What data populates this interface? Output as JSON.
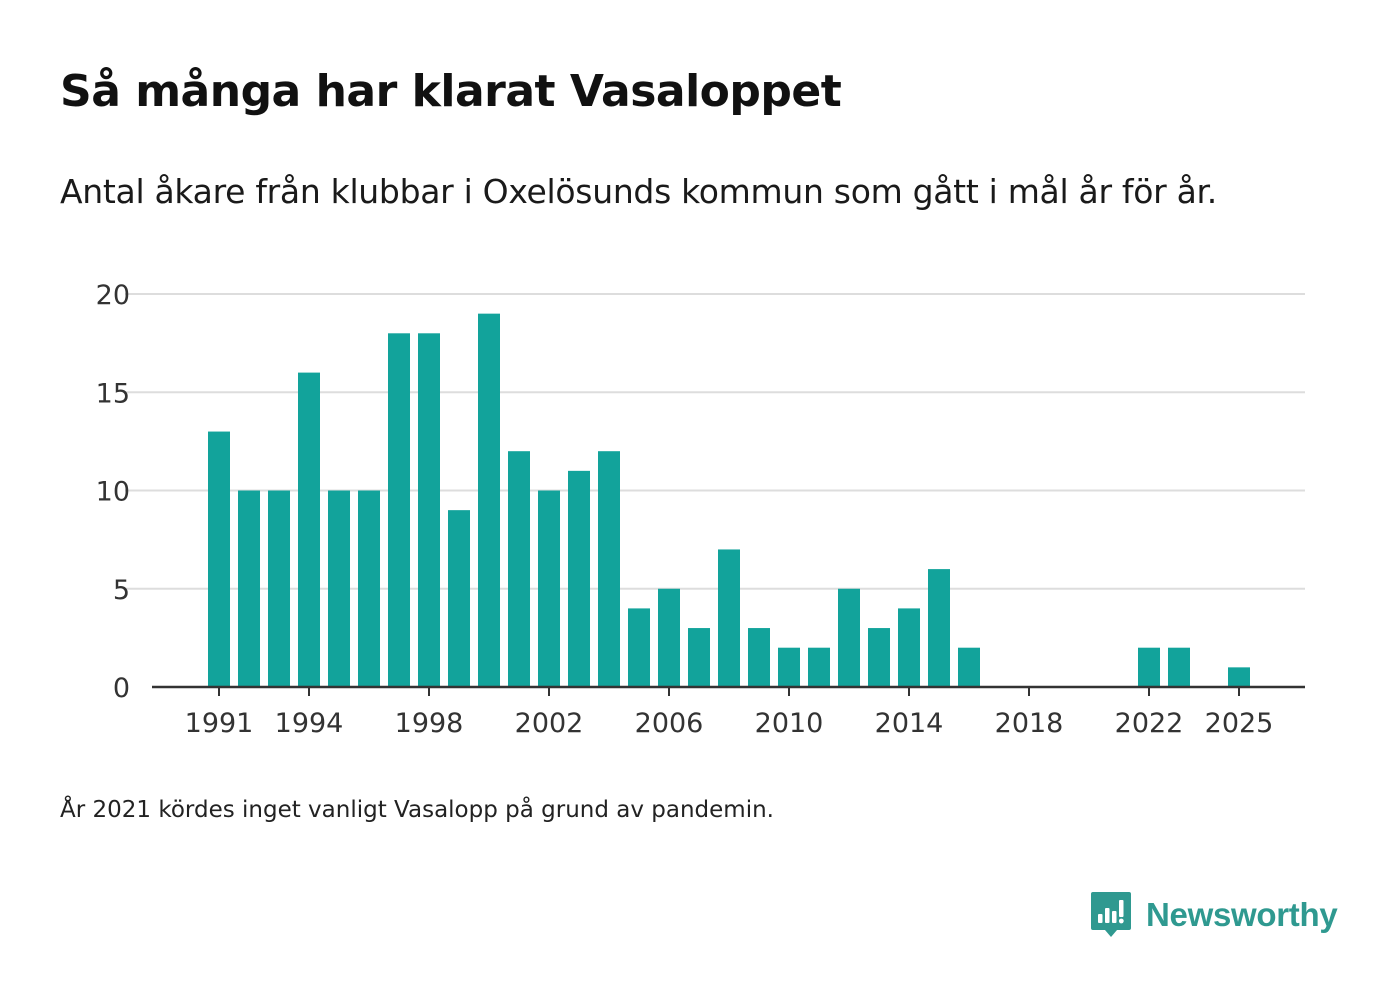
{
  "chart_data": {
    "type": "bar",
    "title": "Så många har klarat Vasaloppet",
    "subtitle": "Antal åkare från klubbar i Oxelösunds kommun som gått i mål år för år.",
    "note": "År 2021 kördes inget vanligt Vasalopp på grund av pandemin.",
    "x": [
      1991,
      1992,
      1993,
      1994,
      1995,
      1996,
      1997,
      1998,
      1999,
      2000,
      2001,
      2002,
      2003,
      2004,
      2005,
      2006,
      2007,
      2008,
      2009,
      2010,
      2011,
      2012,
      2013,
      2014,
      2015,
      2016,
      2017,
      2018,
      2019,
      2020,
      2021,
      2022,
      2023,
      2024,
      2025
    ],
    "values": [
      13,
      10,
      10,
      16,
      10,
      10,
      18,
      18,
      9,
      19,
      12,
      10,
      11,
      12,
      4,
      5,
      3,
      7,
      3,
      2,
      2,
      5,
      3,
      4,
      6,
      2,
      0,
      0,
      0,
      0,
      0,
      2,
      2,
      0,
      1
    ],
    "x_ticks": [
      "1991",
      "1994",
      "1998",
      "2002",
      "2006",
      "2010",
      "2014",
      "2018",
      "2022",
      "2025"
    ],
    "y_ticks": [
      "0",
      "5",
      "10",
      "15",
      "20"
    ],
    "ylim": [
      0,
      20
    ],
    "xlabel": "",
    "ylabel": "",
    "grid": true,
    "bar_color": "#12a39b",
    "grid_color": "#dddddd",
    "axis_color": "#333333"
  },
  "brand": {
    "name": "Newsworthy",
    "logo_icon": "newsworthy-logo-icon",
    "color": "#2f9990"
  }
}
